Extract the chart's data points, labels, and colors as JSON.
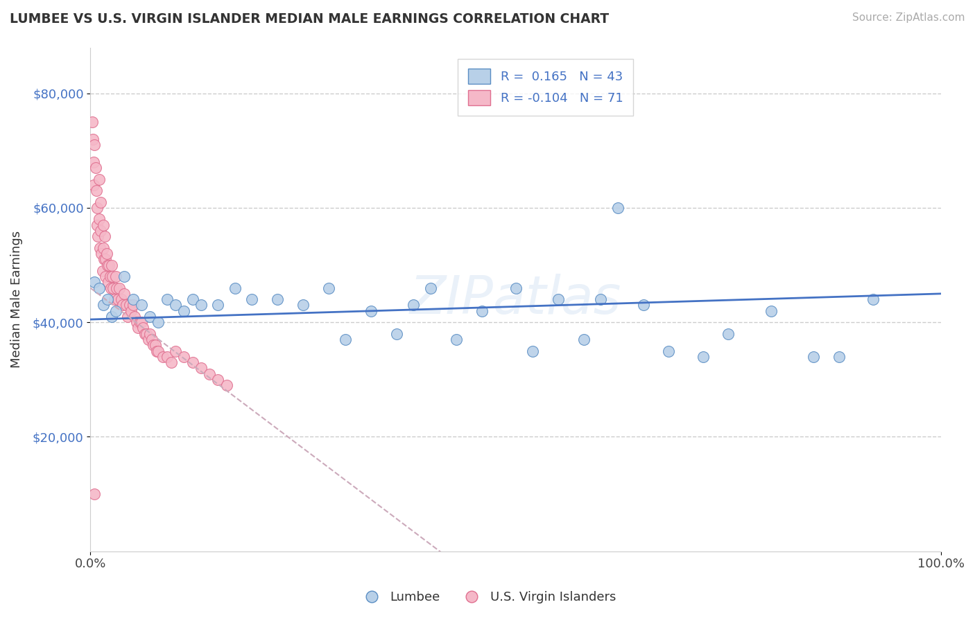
{
  "title": "LUMBEE VS U.S. VIRGIN ISLANDER MEDIAN MALE EARNINGS CORRELATION CHART",
  "source_text": "Source: ZipAtlas.com",
  "ylabel": "Median Male Earnings",
  "xlim": [
    0,
    1.0
  ],
  "ylim": [
    0,
    88000
  ],
  "yticks": [
    20000,
    40000,
    60000,
    80000
  ],
  "ytick_labels": [
    "$20,000",
    "$40,000",
    "$60,000",
    "$80,000"
  ],
  "xtick_labels": [
    "0.0%",
    "100.0%"
  ],
  "lumbee_color": "#b8d0e8",
  "virgin_color": "#f5b8c8",
  "lumbee_edge_color": "#5b8ec4",
  "virgin_edge_color": "#e07090",
  "lumbee_trend_color": "#4472c4",
  "virgin_trend_color": "#ccaabb",
  "watermark": "ZIPatlas",
  "lumbee_R": "0.165",
  "lumbee_N": "43",
  "virgin_R": "-0.104",
  "virgin_N": "71",
  "lumbee_x": [
    0.005,
    0.01,
    0.015,
    0.02,
    0.025,
    0.03,
    0.04,
    0.05,
    0.06,
    0.07,
    0.08,
    0.09,
    0.1,
    0.11,
    0.12,
    0.13,
    0.15,
    0.17,
    0.19,
    0.22,
    0.25,
    0.28,
    0.3,
    0.33,
    0.36,
    0.38,
    0.4,
    0.43,
    0.46,
    0.5,
    0.52,
    0.55,
    0.58,
    0.6,
    0.62,
    0.65,
    0.68,
    0.72,
    0.75,
    0.8,
    0.85,
    0.88,
    0.92
  ],
  "lumbee_y": [
    47000,
    46000,
    43000,
    44000,
    41000,
    42000,
    48000,
    44000,
    43000,
    41000,
    40000,
    44000,
    43000,
    42000,
    44000,
    43000,
    43000,
    46000,
    44000,
    44000,
    43000,
    46000,
    37000,
    42000,
    38000,
    43000,
    46000,
    37000,
    42000,
    46000,
    35000,
    44000,
    37000,
    44000,
    60000,
    43000,
    35000,
    34000,
    38000,
    42000,
    34000,
    34000,
    44000
  ],
  "virgin_x": [
    0.002,
    0.003,
    0.004,
    0.004,
    0.005,
    0.006,
    0.007,
    0.008,
    0.008,
    0.009,
    0.01,
    0.01,
    0.011,
    0.012,
    0.012,
    0.013,
    0.014,
    0.015,
    0.015,
    0.016,
    0.017,
    0.018,
    0.018,
    0.019,
    0.02,
    0.021,
    0.022,
    0.023,
    0.024,
    0.025,
    0.026,
    0.027,
    0.028,
    0.03,
    0.031,
    0.032,
    0.034,
    0.036,
    0.038,
    0.04,
    0.042,
    0.044,
    0.046,
    0.048,
    0.05,
    0.052,
    0.054,
    0.056,
    0.058,
    0.06,
    0.062,
    0.064,
    0.066,
    0.068,
    0.07,
    0.072,
    0.074,
    0.076,
    0.078,
    0.08,
    0.085,
    0.09,
    0.095,
    0.1,
    0.11,
    0.12,
    0.13,
    0.14,
    0.15,
    0.16,
    0.005
  ],
  "virgin_y": [
    75000,
    72000,
    68000,
    64000,
    71000,
    67000,
    63000,
    60000,
    57000,
    55000,
    65000,
    58000,
    53000,
    61000,
    56000,
    52000,
    49000,
    57000,
    53000,
    51000,
    55000,
    51000,
    48000,
    52000,
    50000,
    47000,
    50000,
    48000,
    46000,
    50000,
    48000,
    46000,
    44000,
    48000,
    46000,
    44000,
    46000,
    44000,
    43000,
    45000,
    43000,
    41000,
    43000,
    42000,
    43000,
    41000,
    40000,
    39000,
    40000,
    40000,
    39000,
    38000,
    38000,
    37000,
    38000,
    37000,
    36000,
    36000,
    35000,
    35000,
    34000,
    34000,
    33000,
    35000,
    34000,
    33000,
    32000,
    31000,
    30000,
    29000,
    10000
  ]
}
